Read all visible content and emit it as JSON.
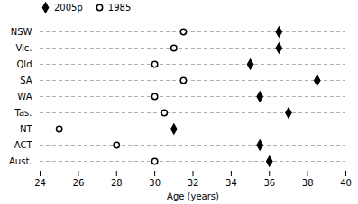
{
  "chart_data": {
    "type": "dot",
    "categories": [
      "NSW",
      "Vic.",
      "Qld",
      "SA",
      "WA",
      "Tas.",
      "NT",
      "ACT",
      "Aust."
    ],
    "series": [
      {
        "name": "2005p",
        "color": "#000000",
        "marker": "diamond",
        "values": [
          36.5,
          36.5,
          35.0,
          38.5,
          35.5,
          37.0,
          31.0,
          35.5,
          36.0
        ]
      },
      {
        "name": "1985",
        "color": "#000000",
        "marker": "circle-open",
        "values": [
          31.5,
          31.0,
          30.0,
          31.5,
          30.0,
          30.5,
          25.0,
          28.0,
          30.0
        ]
      }
    ],
    "orientation": "horizontal",
    "xlabel": "Age (years)",
    "xlim": [
      24,
      40
    ],
    "xticks": [
      24,
      26,
      28,
      30,
      32,
      34,
      36,
      38,
      40
    ],
    "grid": true,
    "legend": "upper left"
  }
}
